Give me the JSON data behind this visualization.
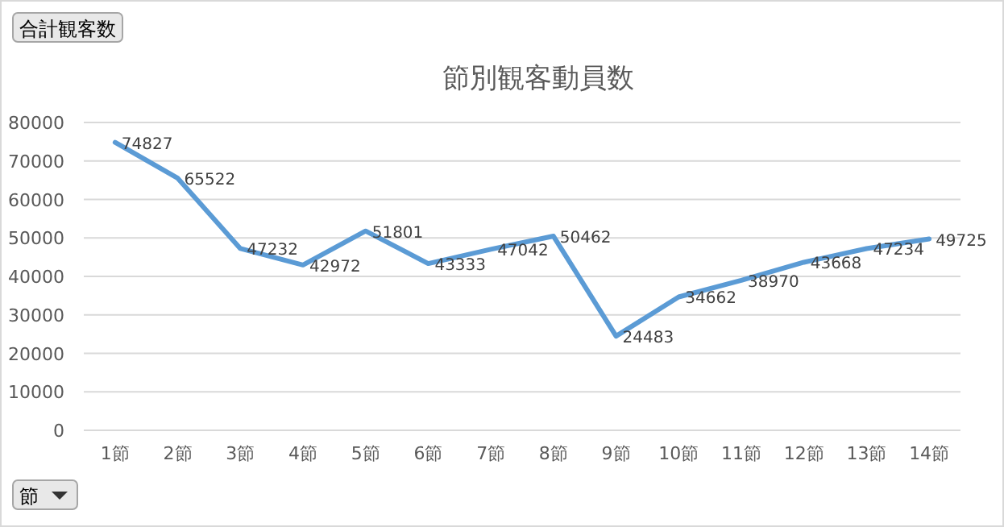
{
  "chart_data": {
    "type": "line",
    "title": "節別観客動員数",
    "xlabel": "節",
    "annotations": [
      "合計観客数"
    ],
    "categories": [
      "1節",
      "2節",
      "3節",
      "4節",
      "5節",
      "6節",
      "7節",
      "8節",
      "9節",
      "10節",
      "11節",
      "12節",
      "13節",
      "14節"
    ],
    "series": [
      {
        "color": "#5b9bd5",
        "values": [
          74827,
          65522,
          47232,
          42972,
          51801,
          43333,
          47042,
          50462,
          24483,
          34662,
          38970,
          43668,
          47234,
          49725
        ]
      }
    ],
    "ylim": [
      0,
      80000
    ],
    "yticks": [
      0,
      10000,
      20000,
      30000,
      40000,
      50000,
      60000,
      70000,
      80000
    ],
    "grid": "y",
    "data_labels": true,
    "marker": "none",
    "line_style": "solid"
  }
}
